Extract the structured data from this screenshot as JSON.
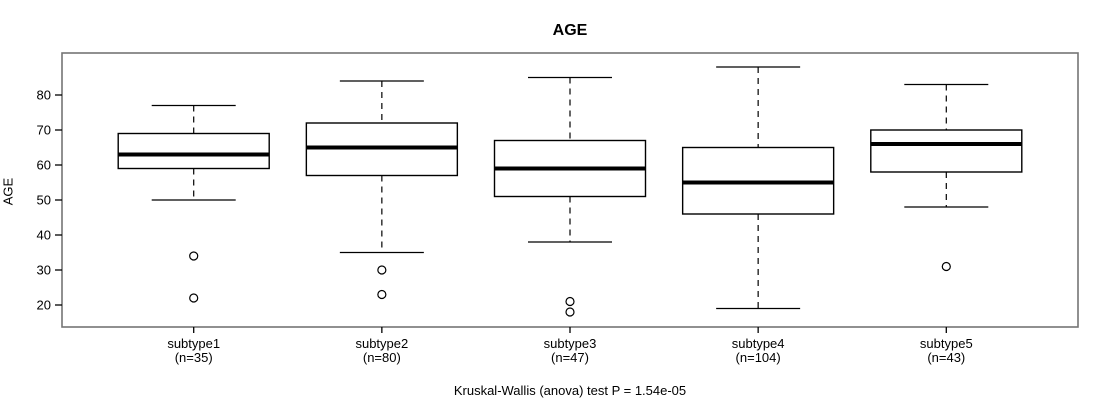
{
  "figure": {
    "title": "AGE",
    "caption": "Kruskal-Wallis (anova) test P = 1.54e-05"
  },
  "chart_data": {
    "type": "boxplot",
    "title": "AGE",
    "xlabel": "",
    "ylabel": "AGE",
    "caption": "Kruskal-Wallis (anova) test P = 1.54e-05",
    "grid": false,
    "legend": "none",
    "y_ticks": [
      20,
      30,
      40,
      50,
      60,
      70,
      80
    ],
    "ylim": [
      14,
      92
    ],
    "categories": [
      "subtype1",
      "subtype2",
      "subtype3",
      "subtype4",
      "subtype5"
    ],
    "n_labels": [
      "(n=35)",
      "(n=80)",
      "(n=47)",
      "(n=104)",
      "(n=43)"
    ],
    "series": [
      {
        "name": "subtype1",
        "n": 35,
        "whisker_low": 50,
        "q1": 59,
        "median": 63,
        "q3": 69,
        "whisker_high": 77,
        "outliers": [
          34,
          22
        ]
      },
      {
        "name": "subtype2",
        "n": 80,
        "whisker_low": 35,
        "q1": 57,
        "median": 65,
        "q3": 72,
        "whisker_high": 84,
        "outliers": [
          30,
          23
        ]
      },
      {
        "name": "subtype3",
        "n": 47,
        "whisker_low": 38,
        "q1": 51,
        "median": 59,
        "q3": 67,
        "whisker_high": 85,
        "outliers": [
          21,
          18
        ]
      },
      {
        "name": "subtype4",
        "n": 104,
        "whisker_low": 19,
        "q1": 46,
        "median": 55,
        "q3": 65,
        "whisker_high": 88,
        "outliers": []
      },
      {
        "name": "subtype5",
        "n": 43,
        "whisker_low": 48,
        "q1": 58,
        "median": 66,
        "q3": 70,
        "whisker_high": 83,
        "outliers": [
          31
        ]
      }
    ],
    "colors": {
      "box_fill": "#ffffff",
      "box_stroke": "#000000",
      "median": "#000000",
      "whisker": "#000000",
      "outlier_stroke": "#000000",
      "frame": "#757575",
      "axis": "#000000",
      "text": "#000000"
    }
  }
}
